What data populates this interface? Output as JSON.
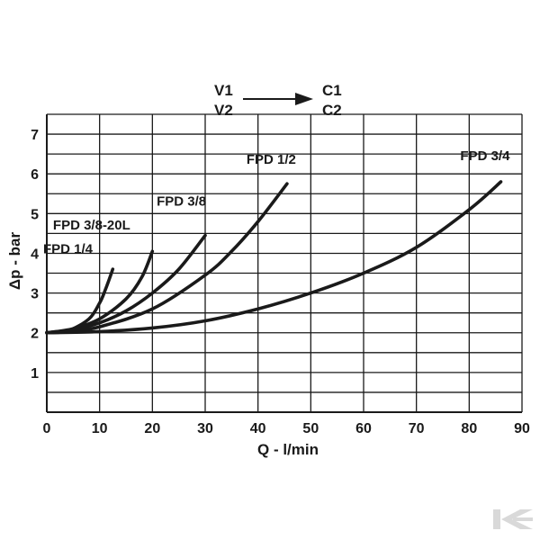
{
  "chart_data": {
    "type": "line",
    "xlabel": "Q - l/min",
    "ylabel": "Δp - bar",
    "xlim": [
      0,
      90
    ],
    "ylim": [
      0,
      7.5
    ],
    "x_ticks": [
      0,
      10,
      20,
      30,
      40,
      50,
      60,
      70,
      80,
      90
    ],
    "y_ticks": [
      1,
      2,
      3,
      4,
      5,
      6,
      7
    ],
    "grid": true,
    "flow_diagram": {
      "from": [
        "V1",
        "V2"
      ],
      "to": [
        "C1",
        "C2"
      ]
    },
    "series": [
      {
        "name": "FPD 1/4",
        "x": [
          0,
          4,
          8,
          10,
          11,
          12.5
        ],
        "y": [
          2.0,
          2.05,
          2.35,
          2.75,
          3.05,
          3.6
        ]
      },
      {
        "name": "FPD 3/8-20L",
        "x": [
          0,
          5,
          10,
          15,
          18,
          20
        ],
        "y": [
          2.0,
          2.1,
          2.35,
          2.85,
          3.4,
          4.05
        ]
      },
      {
        "name": "FPD 3/8",
        "x": [
          0,
          5,
          10,
          15,
          20,
          25,
          30
        ],
        "y": [
          2.0,
          2.08,
          2.25,
          2.55,
          3.0,
          3.6,
          4.45
        ]
      },
      {
        "name": "FPD 1/2",
        "x": [
          0,
          5,
          10,
          20,
          30,
          35,
          40,
          45.5
        ],
        "y": [
          2.0,
          2.05,
          2.15,
          2.6,
          3.45,
          4.05,
          4.8,
          5.75
        ]
      },
      {
        "name": "FPD 3/4",
        "x": [
          0,
          10,
          20,
          30,
          40,
          50,
          60,
          70,
          80,
          86
        ],
        "y": [
          2.0,
          2.03,
          2.12,
          2.3,
          2.6,
          3.0,
          3.5,
          4.15,
          5.1,
          5.8
        ]
      }
    ],
    "series_label_positions": [
      {
        "name": "FPD 1/4",
        "at": [
          4,
          4.0
        ]
      },
      {
        "name": "FPD 3/8-20L",
        "at": [
          8.5,
          4.6
        ]
      },
      {
        "name": "FPD 3/8",
        "at": [
          25.5,
          5.2
        ]
      },
      {
        "name": "FPD 1/2",
        "at": [
          42.5,
          6.25
        ]
      },
      {
        "name": "FPD 3/4",
        "at": [
          83,
          6.35
        ]
      }
    ]
  },
  "colors": {
    "ink": "#1a1a1a",
    "background": "#ffffff",
    "watermark": "#d9d9d9"
  },
  "watermark_icon": "k-logo-icon"
}
